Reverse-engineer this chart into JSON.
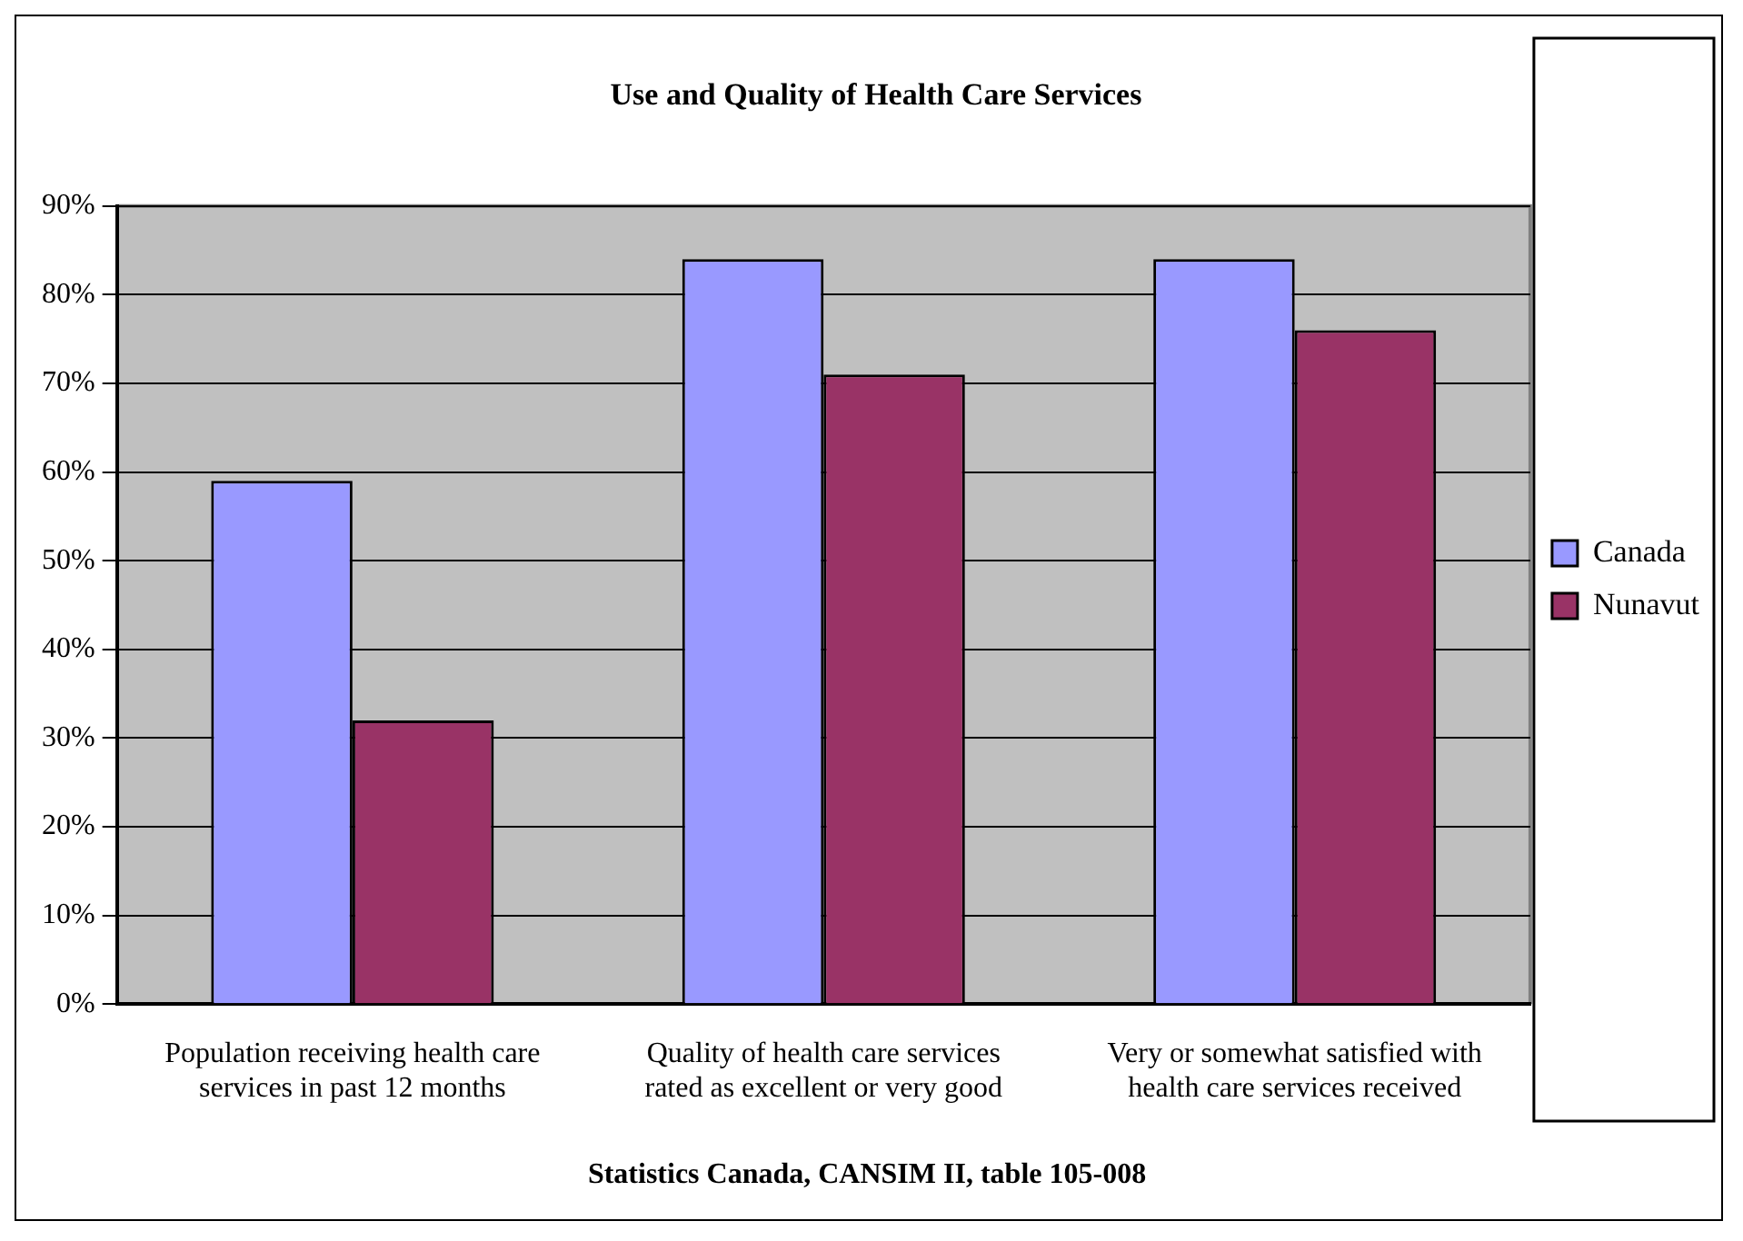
{
  "chart_data": {
    "type": "bar",
    "title": "Use and Quality of Health Care Services",
    "categories": [
      "Population receiving health care services in past 12 months",
      "Quality of health care services rated as excellent or very good",
      "Very or somewhat satisfied with health care services received"
    ],
    "series": [
      {
        "name": "Canada",
        "color": "#9999ff",
        "values": [
          59,
          84,
          84
        ]
      },
      {
        "name": "Nunavut",
        "color": "#993366",
        "values": [
          32,
          71,
          76
        ]
      }
    ],
    "ylim": [
      0,
      90
    ],
    "yticks": [
      {
        "value": 0,
        "label": "0%"
      },
      {
        "value": 10,
        "label": "10%"
      },
      {
        "value": 20,
        "label": "20%"
      },
      {
        "value": 30,
        "label": "30%"
      },
      {
        "value": 40,
        "label": "40%"
      },
      {
        "value": 50,
        "label": "50%"
      },
      {
        "value": 60,
        "label": "60%"
      },
      {
        "value": 70,
        "label": "70%"
      },
      {
        "value": 80,
        "label": "80%"
      },
      {
        "value": 90,
        "label": "90%"
      }
    ],
    "grid": "y",
    "legend": "right",
    "annotations": [
      "Statistics Canada, CANSIM II, table 105-008"
    ]
  }
}
